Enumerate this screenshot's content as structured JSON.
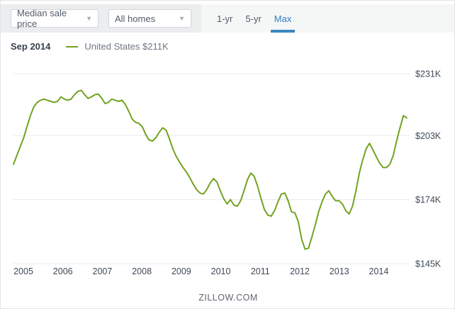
{
  "toolbar": {
    "metric_dropdown": {
      "value": "Median sale price"
    },
    "homes_dropdown": {
      "value": "All homes"
    },
    "range_tabs": [
      {
        "label": "1-yr",
        "active": false
      },
      {
        "label": "5-yr",
        "active": false
      },
      {
        "label": "Max",
        "active": true
      }
    ]
  },
  "legend": {
    "date": "Sep 2014",
    "series_label": "United States $211K"
  },
  "footer": {
    "text": "ZILLOW.COM"
  },
  "colors": {
    "line_green": "#73a222",
    "accent_blue": "#2e82c6",
    "grid": "#e9eaea",
    "axis_text": "#3f4a56",
    "bar_left_bg": "#ebedee",
    "bar_right_bg": "#f5f6f6"
  },
  "chart_data": {
    "type": "line",
    "title": "Median sale price, All homes, United States (Max range)",
    "x_unit": "month",
    "start_month": "2005-01",
    "end_month": "2014-09",
    "x_tick_labels": [
      "2005",
      "2006",
      "2007",
      "2008",
      "2009",
      "2010",
      "2011",
      "2012",
      "2013",
      "2014"
    ],
    "y_tick_labels": [
      "$231K",
      "$203K",
      "$174K",
      "$145K"
    ],
    "y_tick_values": [
      231,
      203,
      174,
      145
    ],
    "ylim": [
      145,
      231
    ],
    "grid": "horizontal-only",
    "legend_position": "top-left",
    "series": [
      {
        "name": "United States",
        "unit": "USD thousands",
        "values": [
          190,
          194,
          198,
          202,
          207,
          212,
          216,
          218,
          219,
          219.5,
          219,
          218.5,
          218,
          218.5,
          220.5,
          219.5,
          219,
          219.5,
          221.5,
          223,
          223.5,
          221.5,
          219.8,
          220.5,
          221.5,
          221.8,
          220,
          217.5,
          218,
          219.5,
          219,
          218.5,
          219,
          217,
          214,
          210.5,
          209,
          208.5,
          207,
          203.5,
          201,
          200.5,
          202,
          204.5,
          206.5,
          205.5,
          201.5,
          197,
          193.5,
          191,
          188.5,
          186.5,
          184,
          181,
          178.5,
          177,
          176.5,
          178.5,
          181.5,
          183.5,
          182,
          178,
          174.5,
          172,
          174,
          171.5,
          171,
          173.5,
          178,
          183,
          186,
          184.5,
          180,
          174.5,
          169.5,
          167,
          166.5,
          169,
          173,
          176.5,
          177,
          173.5,
          168.5,
          168,
          164,
          156,
          151.5,
          152,
          157,
          162.5,
          168.5,
          173,
          176.5,
          178,
          175.5,
          173.5,
          173.5,
          172,
          169,
          167.5,
          171,
          178,
          186,
          192,
          197,
          199.5,
          196.5,
          193.5,
          190.5,
          188.5,
          188.5,
          190,
          194,
          200.5,
          206.5,
          212,
          211
        ]
      }
    ],
    "latest_point": {
      "date": "Sep 2014",
      "value_k": 211,
      "label": "United States $211K"
    }
  }
}
